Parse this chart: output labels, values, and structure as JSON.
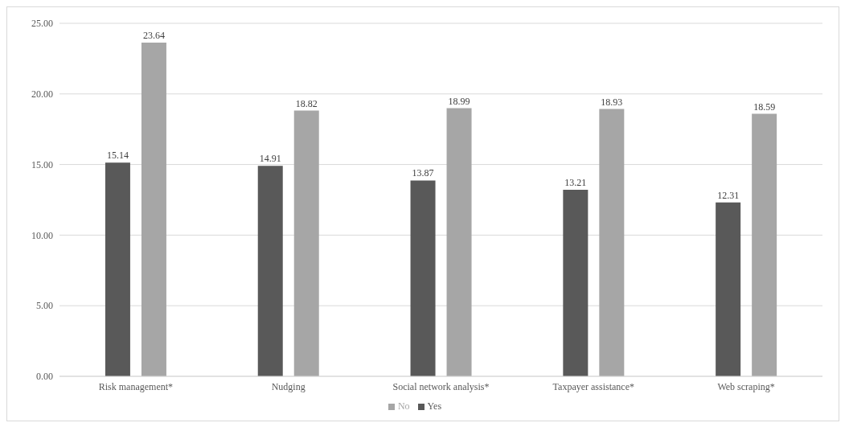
{
  "chart_data": {
    "type": "bar",
    "categories": [
      "Risk management*",
      "Nudging",
      "Social network analysis*",
      "Taxpayer assistance*",
      "Web scraping*"
    ],
    "series": [
      {
        "name": "Yes",
        "color": "#595959",
        "values": [
          15.14,
          14.91,
          13.87,
          13.21,
          12.31
        ]
      },
      {
        "name": "No",
        "color": "#a6a6a6",
        "values": [
          23.64,
          18.82,
          18.99,
          18.93,
          18.59
        ]
      }
    ],
    "ylim": [
      0,
      25
    ],
    "yticks": [
      {
        "value": 0,
        "label": "0.00"
      },
      {
        "value": 5,
        "label": "5.00"
      },
      {
        "value": 10,
        "label": "10.00"
      },
      {
        "value": 15,
        "label": "15.00"
      },
      {
        "value": 20,
        "label": "20.00"
      },
      {
        "value": 25,
        "label": "25.00"
      }
    ],
    "grid": "y",
    "legend": "bottom",
    "data_labels": true
  }
}
